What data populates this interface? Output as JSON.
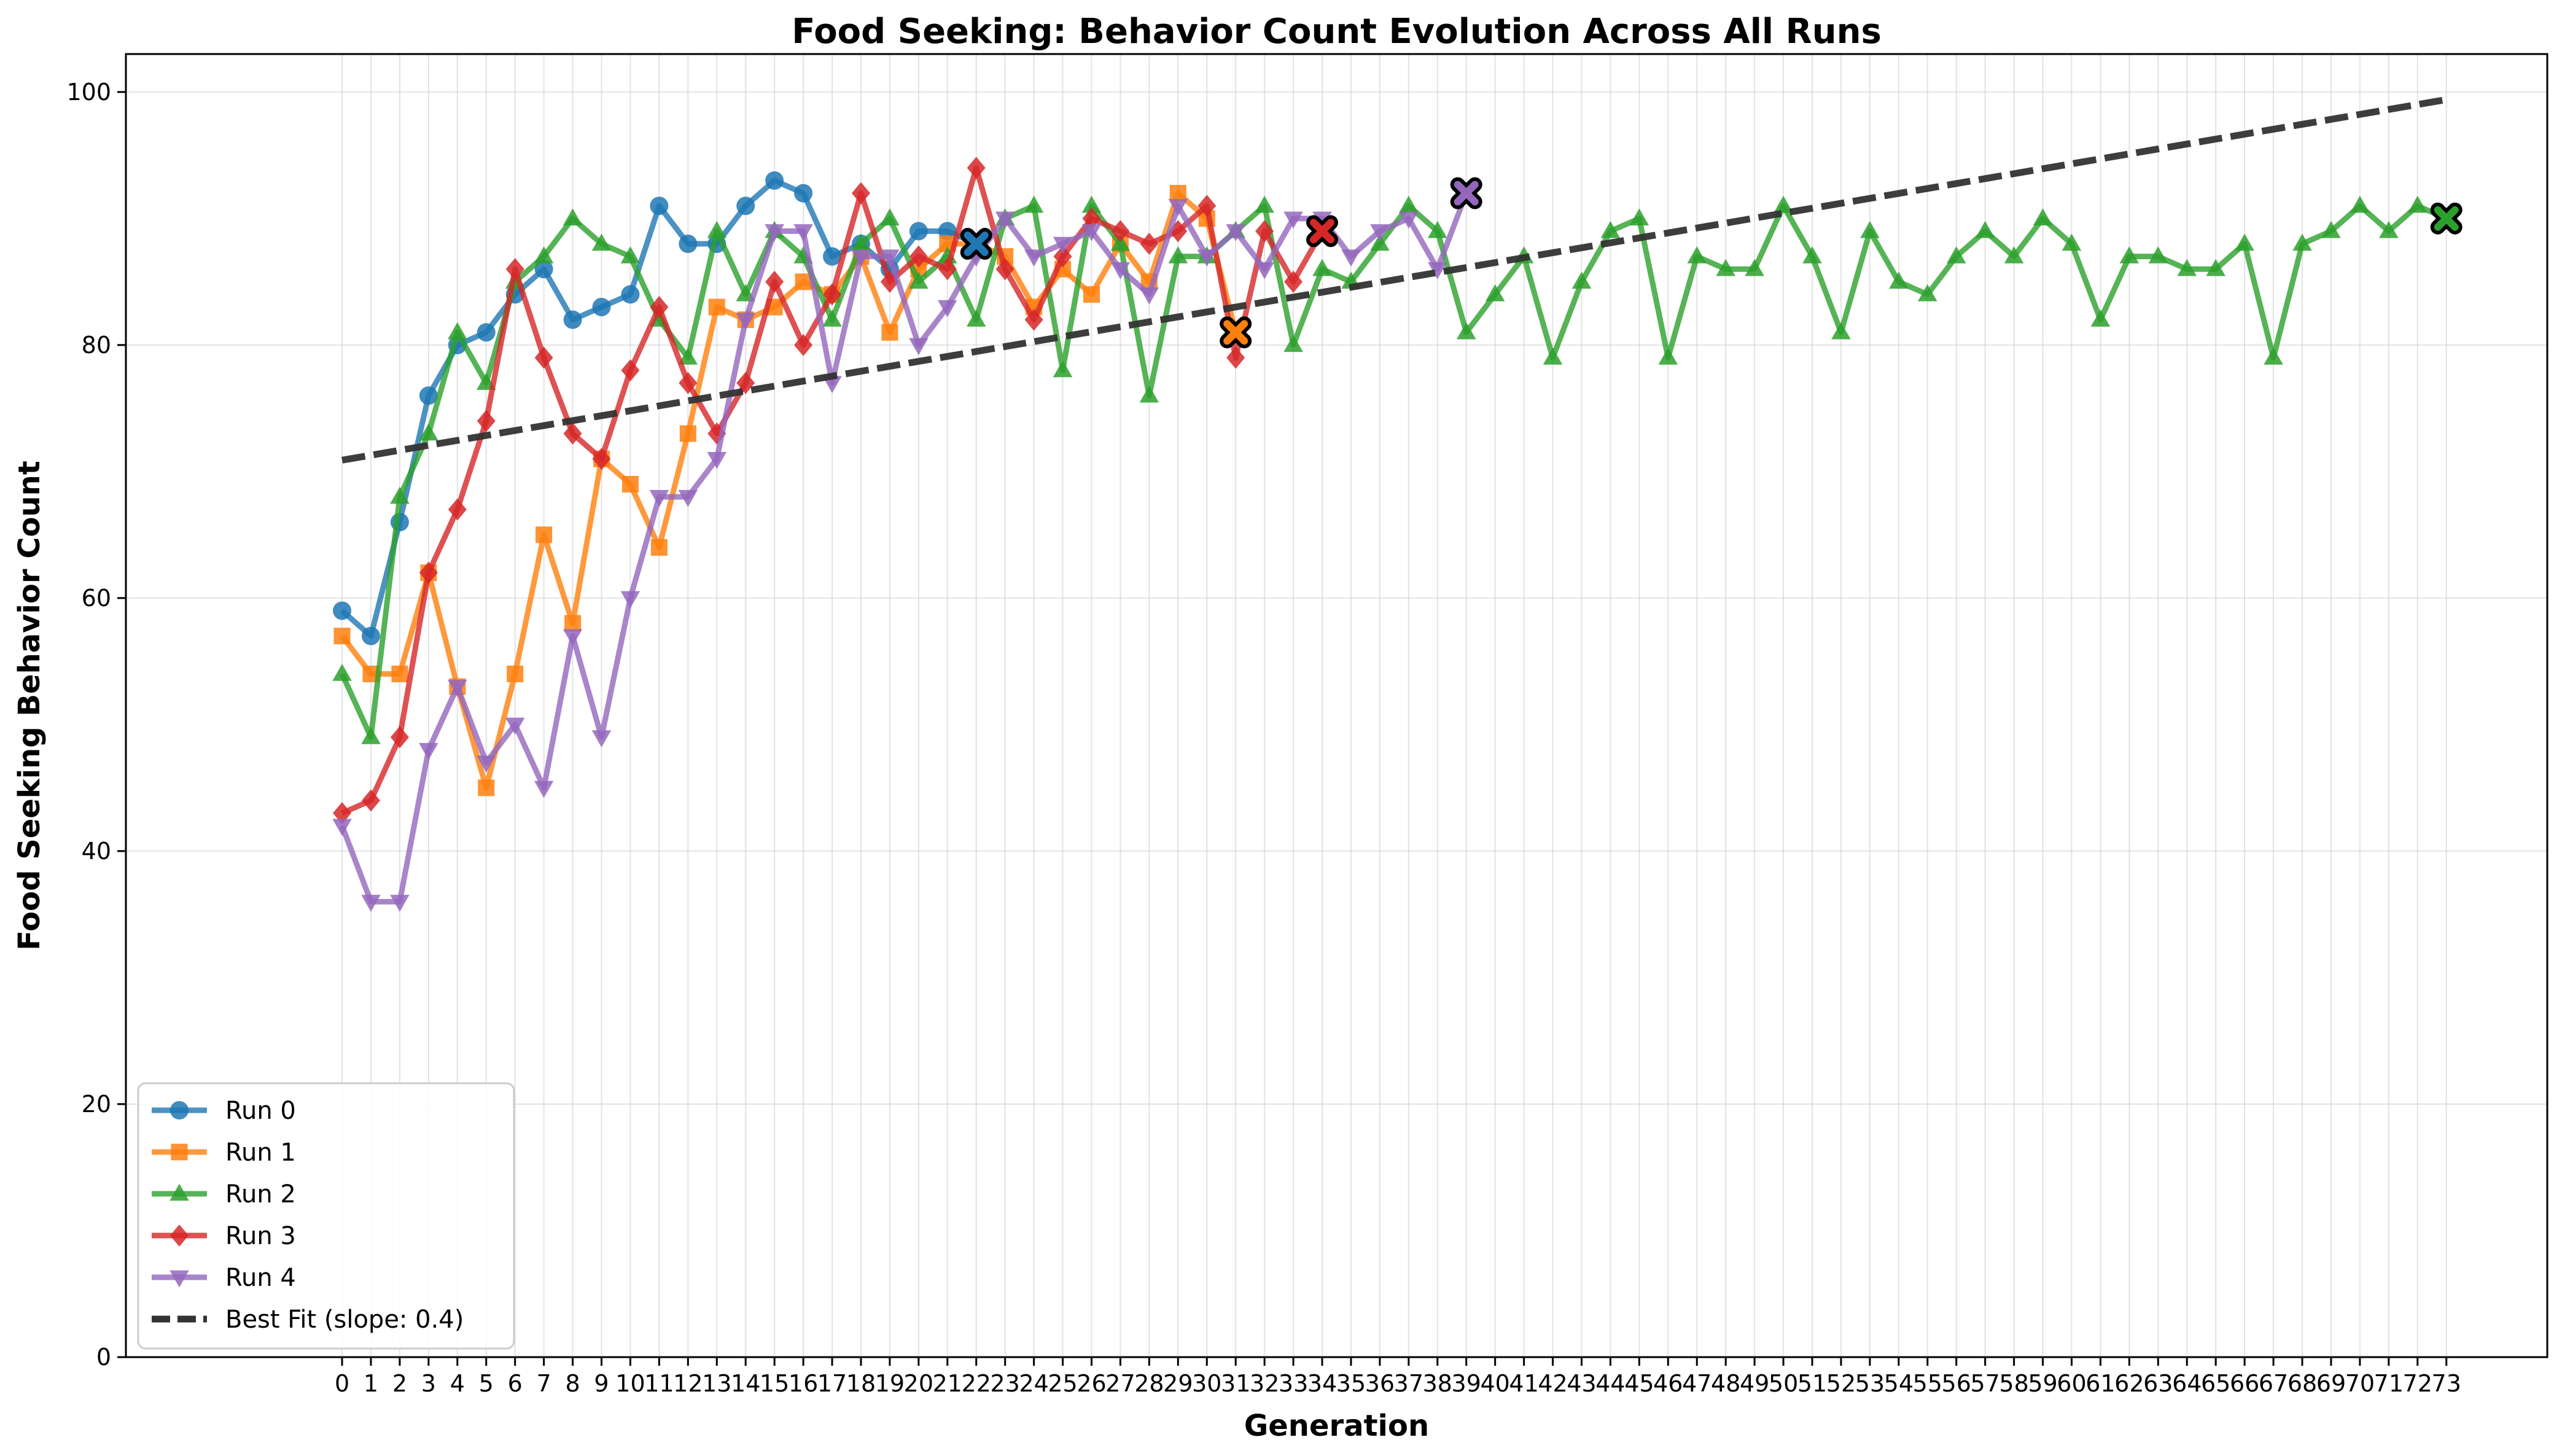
{
  "chart_data": {
    "type": "line",
    "title": "Food Seeking: Behavior Count Evolution Across All Runs",
    "xlabel": "Generation",
    "ylabel": "Food Seeking Behavior Count",
    "xlim": [
      -7.5,
      76.5
    ],
    "ylim": [
      0,
      103
    ],
    "yticks": [
      0,
      20,
      40,
      60,
      80,
      100
    ],
    "grid": true,
    "legend_position": "lower-left",
    "series": [
      {
        "name": "Run 0",
        "color": "#1f77b4",
        "marker": "circle",
        "x": [
          0,
          1,
          2,
          3,
          4,
          5,
          6,
          7,
          8,
          9,
          10,
          11,
          12,
          13,
          14,
          15,
          16,
          17,
          18,
          19,
          20,
          21,
          22
        ],
        "values": [
          59,
          57,
          66,
          76,
          80,
          81,
          84,
          86,
          82,
          83,
          84,
          91,
          88,
          88,
          91,
          93,
          92,
          87,
          88,
          86,
          89,
          89,
          88
        ]
      },
      {
        "name": "Run 1",
        "color": "#ff7f0e",
        "marker": "square",
        "x": [
          0,
          1,
          2,
          3,
          4,
          5,
          6,
          7,
          8,
          9,
          10,
          11,
          12,
          13,
          14,
          15,
          16,
          17,
          18,
          19,
          20,
          21,
          22,
          23,
          24,
          25,
          26,
          27,
          28,
          29,
          30,
          31
        ],
        "values": [
          57,
          54,
          54,
          62,
          53,
          45,
          54,
          65,
          58,
          71,
          69,
          64,
          73,
          83,
          82,
          83,
          85,
          84,
          87,
          81,
          86,
          88,
          88,
          87,
          83,
          86,
          84,
          88,
          85,
          92,
          90,
          81
        ]
      },
      {
        "name": "Run 2",
        "color": "#2ca02c",
        "marker": "triangle-up",
        "x": [
          0,
          1,
          2,
          3,
          4,
          5,
          6,
          7,
          8,
          9,
          10,
          11,
          12,
          13,
          14,
          15,
          16,
          17,
          18,
          19,
          20,
          21,
          22,
          23,
          24,
          25,
          26,
          27,
          28,
          29,
          30,
          31,
          32,
          33,
          34,
          35,
          36,
          37,
          38,
          39,
          40,
          41,
          42,
          43,
          44,
          45,
          46,
          47,
          48,
          49,
          50,
          51,
          52,
          53,
          54,
          55,
          56,
          57,
          58,
          59,
          60,
          61,
          62,
          63,
          64,
          65,
          66,
          67,
          68,
          69,
          70,
          71,
          72,
          73
        ],
        "values": [
          54,
          49,
          68,
          73,
          81,
          77,
          85,
          87,
          90,
          88,
          87,
          82,
          79,
          89,
          84,
          89,
          87,
          82,
          88,
          90,
          85,
          87,
          82,
          90,
          91,
          78,
          91,
          88,
          76,
          87,
          87,
          89,
          91,
          80,
          86,
          85,
          88,
          91,
          89,
          81,
          84,
          87,
          79,
          85,
          89,
          90,
          79,
          87,
          86,
          86,
          91,
          87,
          81,
          89,
          85,
          84,
          87,
          89,
          87,
          90,
          88,
          82,
          87,
          87,
          86,
          86,
          88,
          79,
          88,
          89,
          91,
          89,
          91,
          90
        ]
      },
      {
        "name": "Run 3",
        "color": "#d62728",
        "marker": "diamond",
        "x": [
          0,
          1,
          2,
          3,
          4,
          5,
          6,
          7,
          8,
          9,
          10,
          11,
          12,
          13,
          14,
          15,
          16,
          17,
          18,
          19,
          20,
          21,
          22,
          23,
          24,
          25,
          26,
          27,
          28,
          29,
          30,
          31,
          32,
          33,
          34
        ],
        "values": [
          43,
          44,
          49,
          62,
          67,
          74,
          86,
          79,
          73,
          71,
          78,
          83,
          77,
          73,
          77,
          85,
          80,
          84,
          92,
          85,
          87,
          86,
          94,
          86,
          82,
          87,
          90,
          89,
          88,
          89,
          91,
          79,
          89,
          85,
          89
        ]
      },
      {
        "name": "Run 4",
        "color": "#9467bd",
        "marker": "triangle-down",
        "x": [
          0,
          1,
          2,
          3,
          4,
          5,
          6,
          7,
          8,
          9,
          10,
          11,
          12,
          13,
          14,
          15,
          16,
          17,
          18,
          19,
          20,
          21,
          22,
          23,
          24,
          25,
          26,
          27,
          28,
          29,
          30,
          31,
          32,
          33,
          34,
          35,
          36,
          37,
          38,
          39
        ],
        "values": [
          42,
          36,
          36,
          48,
          53,
          47,
          50,
          45,
          57,
          49,
          60,
          68,
          68,
          71,
          82,
          89,
          89,
          77,
          87,
          87,
          80,
          83,
          87,
          90,
          87,
          88,
          89,
          86,
          84,
          91,
          87,
          89,
          86,
          90,
          90,
          87,
          89,
          90,
          86,
          92
        ]
      }
    ],
    "best_fit": {
      "name": "Best Fit (slope: 0.4)",
      "color": "#333333",
      "x": [
        0,
        73
      ],
      "values": [
        70.9,
        99.4
      ]
    },
    "final_markers": [
      {
        "x": 22,
        "y": 88,
        "color": "#1f77b4"
      },
      {
        "x": 31,
        "y": 81,
        "color": "#ff7f0e"
      },
      {
        "x": 73,
        "y": 90,
        "color": "#2ca02c"
      },
      {
        "x": 34,
        "y": 89,
        "color": "#d62728"
      },
      {
        "x": 39,
        "y": 92,
        "color": "#9467bd"
      }
    ]
  }
}
